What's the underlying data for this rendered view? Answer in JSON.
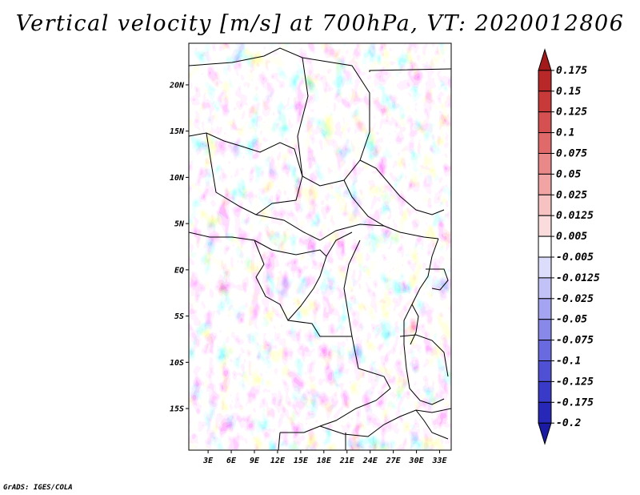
{
  "title": "Vertical velocity [m/s] at 700hPa, VT: 2020012806",
  "credit": "GrADS: IGES/COLA",
  "map": {
    "variable": "Vertical velocity",
    "units": "m/s",
    "level": "700hPa",
    "valid_time": "2020012806",
    "lat_labels": [
      "20N",
      "15N",
      "10N",
      "5N",
      "EQ",
      "5S",
      "10S",
      "15S"
    ],
    "lat_values": [
      20,
      15,
      10,
      5,
      0,
      -5,
      -10,
      -15
    ],
    "lon_labels": [
      "3E",
      "6E",
      "9E",
      "12E",
      "15E",
      "18E",
      "21E",
      "24E",
      "27E",
      "30E",
      "33E"
    ],
    "lon_values": [
      3,
      6,
      9,
      12,
      15,
      18,
      21,
      24,
      27,
      30,
      33
    ],
    "lat_range": [
      -19.5,
      24.5
    ],
    "lon_range": [
      0.5,
      34.5
    ]
  },
  "colorbar": {
    "levels": [
      "0.175",
      "0.15",
      "0.125",
      "0.1",
      "0.075",
      "0.05",
      "0.025",
      "0.0125",
      "0.005",
      "-0.005",
      "-0.0125",
      "-0.025",
      "-0.05",
      "-0.075",
      "-0.1",
      "-0.125",
      "-0.175",
      "-0.2"
    ],
    "colors": [
      "#a31a1a",
      "#b82828",
      "#c83a3a",
      "#d55050",
      "#e06a6a",
      "#e88888",
      "#f0a4a4",
      "#f6c2c2",
      "#fbdcdc",
      "#ffffff",
      "#dcdcfb",
      "#c2c2f6",
      "#a4a4f0",
      "#8888e8",
      "#6a6ae0",
      "#5050d5",
      "#3a3ac8",
      "#2828b8",
      "#1a1aa3"
    ]
  },
  "colors": {
    "positive": "#e05050",
    "negative": "#4848d8",
    "border": "#000000"
  }
}
